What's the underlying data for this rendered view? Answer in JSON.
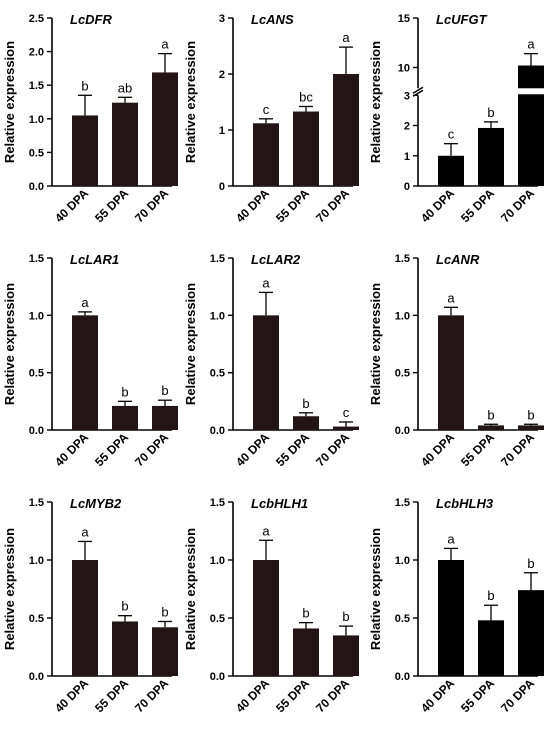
{
  "chart_data": [
    {
      "type": "bar",
      "title": "LcDFR",
      "ylabel": "Relative expression",
      "categories": [
        "40 DPA",
        "55 DPA",
        "70 DPA"
      ],
      "values": [
        1.05,
        1.24,
        1.69
      ],
      "errors": [
        0.3,
        0.08,
        0.28
      ],
      "letters": [
        "b",
        "ab",
        "a"
      ],
      "ylim": [
        0,
        2.5
      ],
      "yticks": [
        "0.0",
        "0.5",
        "1.0",
        "1.5",
        "2.0",
        "2.5"
      ],
      "yticks_values": [
        0,
        0.5,
        1,
        1.5,
        2,
        2.5
      ],
      "bar_color": "#231515"
    },
    {
      "type": "bar",
      "title": "LcANS",
      "ylabel": "Relative expression",
      "categories": [
        "40 DPA",
        "55 DPA",
        "70 DPA"
      ],
      "values": [
        1.12,
        1.33,
        2.0
      ],
      "errors": [
        0.08,
        0.09,
        0.48
      ],
      "letters": [
        "c",
        "bc",
        "a"
      ],
      "ylim": [
        0,
        3
      ],
      "yticks": [
        "0",
        "1",
        "2",
        "3"
      ],
      "yticks_values": [
        0,
        1,
        2,
        3
      ],
      "bar_color": "#231515"
    },
    {
      "type": "bar",
      "title": "LcUFGT",
      "ylabel": "Relative expression",
      "categories": [
        "40 DPA",
        "55 DPA",
        "70 DPA"
      ],
      "values": [
        1.0,
        1.92,
        10.2
      ],
      "errors": [
        0.4,
        0.2,
        1.2
      ],
      "letters": [
        "c",
        "b",
        "a"
      ],
      "ylim": [
        0,
        15
      ],
      "axis_break": [
        3,
        8
      ],
      "yticks": [
        "0",
        "1",
        "2",
        "3",
        "10",
        "15"
      ],
      "yticks_values": [
        0,
        1,
        2,
        3,
        10,
        15
      ],
      "bar_color": "#000000"
    },
    {
      "type": "bar",
      "title": "LcLAR1",
      "ylabel": "Relative expression",
      "categories": [
        "40 DPA",
        "55 DPA",
        "70 DPA"
      ],
      "values": [
        1.0,
        0.21,
        0.21
      ],
      "errors": [
        0.03,
        0.04,
        0.05
      ],
      "letters": [
        "a",
        "b",
        "b"
      ],
      "ylim": [
        0,
        1.5
      ],
      "yticks": [
        "0.0",
        "0.5",
        "1.0",
        "1.5"
      ],
      "yticks_values": [
        0,
        0.5,
        1,
        1.5
      ],
      "bar_color": "#231515"
    },
    {
      "type": "bar",
      "title": "LcLAR2",
      "ylabel": "Relative expression",
      "categories": [
        "40 DPA",
        "55 DPA",
        "70 DPA"
      ],
      "values": [
        1.0,
        0.12,
        0.03
      ],
      "errors": [
        0.2,
        0.03,
        0.04
      ],
      "letters": [
        "a",
        "b",
        "c"
      ],
      "ylim": [
        0,
        1.5
      ],
      "yticks": [
        "0.0",
        "0.5",
        "1.0",
        "1.5"
      ],
      "yticks_values": [
        0,
        0.5,
        1,
        1.5
      ],
      "bar_color": "#231515"
    },
    {
      "type": "bar",
      "title": "LcANR",
      "ylabel": "Relative expression",
      "categories": [
        "40 DPA",
        "55 DPA",
        "70 DPA"
      ],
      "values": [
        1.0,
        0.04,
        0.04
      ],
      "errors": [
        0.07,
        0.01,
        0.01
      ],
      "letters": [
        "a",
        "b",
        "b"
      ],
      "ylim": [
        0,
        1.5
      ],
      "yticks": [
        "0.0",
        "0.5",
        "1.0",
        "1.5"
      ],
      "yticks_values": [
        0,
        0.5,
        1,
        1.5
      ],
      "bar_color": "#231515"
    },
    {
      "type": "bar",
      "title": "LcMYB2",
      "ylabel": "Relative expression",
      "categories": [
        "40 DPA",
        "55 DPA",
        "70 DPA"
      ],
      "values": [
        1.0,
        0.47,
        0.42
      ],
      "errors": [
        0.16,
        0.05,
        0.05
      ],
      "letters": [
        "a",
        "b",
        "b"
      ],
      "ylim": [
        0,
        1.5
      ],
      "yticks": [
        "0.0",
        "0.5",
        "1.0",
        "1.5"
      ],
      "yticks_values": [
        0,
        0.5,
        1,
        1.5
      ],
      "bar_color": "#231515"
    },
    {
      "type": "bar",
      "title": "LcbHLH1",
      "ylabel": "Relative expression",
      "categories": [
        "40 DPA",
        "55 DPA",
        "70 DPA"
      ],
      "values": [
        1.0,
        0.41,
        0.35
      ],
      "errors": [
        0.17,
        0.05,
        0.08
      ],
      "letters": [
        "a",
        "b",
        "b"
      ],
      "ylim": [
        0,
        1.5
      ],
      "yticks": [
        "0.0",
        "0.5",
        "1.0",
        "1.5"
      ],
      "yticks_values": [
        0,
        0.5,
        1,
        1.5
      ],
      "bar_color": "#231515"
    },
    {
      "type": "bar",
      "title": "LcbHLH3",
      "ylabel": "Relative expression",
      "categories": [
        "40 DPA",
        "55 DPA",
        "70 DPA"
      ],
      "values": [
        1.0,
        0.48,
        0.74
      ],
      "errors": [
        0.1,
        0.13,
        0.15
      ],
      "letters": [
        "a",
        "b",
        "b"
      ],
      "ylim": [
        0,
        1.5
      ],
      "yticks": [
        "0.0",
        "0.5",
        "1.0",
        "1.5"
      ],
      "yticks_values": [
        0,
        0.5,
        1,
        1.5
      ],
      "bar_color": "#000000"
    }
  ]
}
